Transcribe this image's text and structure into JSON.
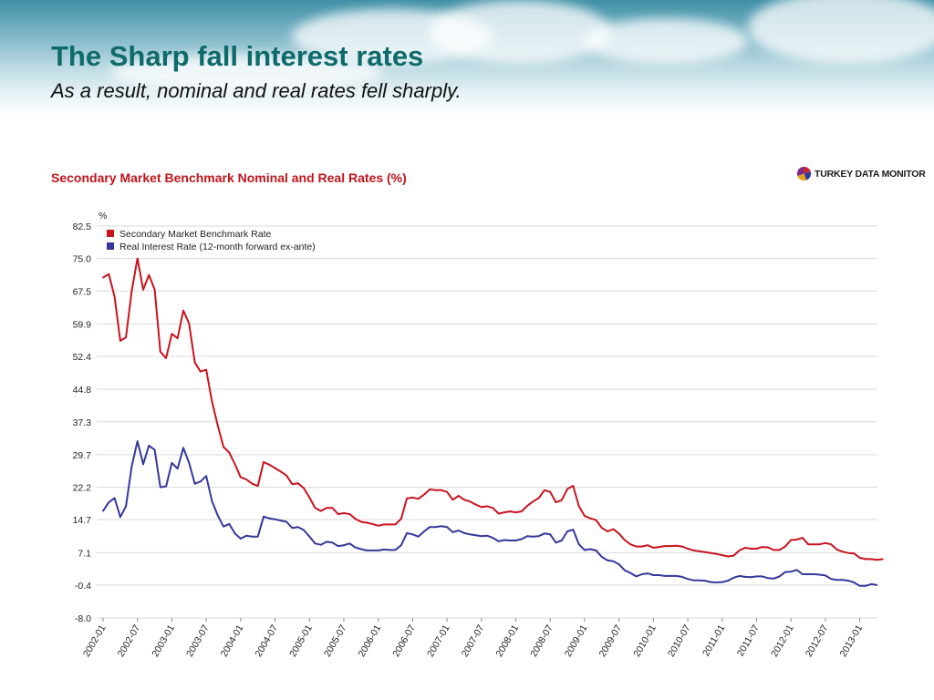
{
  "slide": {
    "title": "The Sharp fall interest rates",
    "subtitle": "As a result, nominal and real rates fell sharply."
  },
  "brand": {
    "logo_icon": "pie-logo-icon",
    "name": "TURKEY DATA MONITOR"
  },
  "colors": {
    "title": "#0f6b6b",
    "chart_title": "#c0151b",
    "nominal": "#c8141e",
    "real": "#34389a",
    "grid": "#d9d9d9"
  },
  "chart_data": {
    "type": "line",
    "title": "Secondary Market Benchmark Nominal and Real Rates (%)",
    "ylabel": "%",
    "xlabel": "",
    "ylim": [
      -8.0,
      82.5
    ],
    "yticks": [
      "82.5",
      "75.0",
      "67.5",
      "59.9",
      "52.4",
      "44.8",
      "37.3",
      "29.7",
      "22.2",
      "14.7",
      "7.1",
      "-0.4",
      "-8.0"
    ],
    "xticks": [
      "2002-01",
      "2002-07",
      "2003-01",
      "2003-07",
      "2004-01",
      "2004-07",
      "2005-01",
      "2005-07",
      "2006-01",
      "2006-07",
      "2007-01",
      "2007-07",
      "2008-01",
      "2008-07",
      "2009-01",
      "2009-07",
      "2010-01",
      "2010-07",
      "2011-01",
      "2011-07",
      "2012-01",
      "2012-07",
      "2013-01"
    ],
    "grid": true,
    "legend_position": "top-left",
    "x_start": "2002-01",
    "x_step": "1 month",
    "series": [
      {
        "name": "Secondary Market Benchmark Rate",
        "color": "#c8141e",
        "values": [
          70.6,
          71.4,
          66.2,
          56.0,
          56.8,
          67.5,
          75.0,
          67.8,
          71.2,
          67.8,
          53.5,
          52.0,
          57.6,
          56.6,
          63.0,
          60.0,
          51.0,
          48.9,
          49.3,
          42.0,
          36.5,
          31.5,
          30.2,
          27.5,
          24.5,
          24.0,
          23.0,
          22.5,
          28.0,
          27.4,
          26.6,
          25.8,
          24.9,
          22.9,
          23.1,
          22.0,
          19.8,
          17.4,
          16.7,
          17.4,
          17.4,
          16.0,
          16.2,
          16.0,
          14.9,
          14.2,
          14.0,
          13.7,
          13.3,
          13.6,
          13.6,
          13.6,
          14.9,
          19.6,
          19.8,
          19.5,
          20.5,
          21.7,
          21.5,
          21.5,
          21.1,
          19.3,
          20.2,
          19.3,
          18.9,
          18.2,
          17.6,
          17.8,
          17.4,
          16.1,
          16.4,
          16.6,
          16.4,
          16.6,
          17.9,
          18.9,
          19.7,
          21.5,
          21.1,
          18.7,
          19.2,
          21.8,
          22.5,
          17.8,
          15.6,
          15.0,
          14.6,
          12.8,
          12.0,
          12.5,
          11.5,
          10.0,
          9.0,
          8.5,
          8.5,
          8.8,
          8.2,
          8.4,
          8.6,
          8.6,
          8.7,
          8.5,
          8.0,
          7.6,
          7.4,
          7.2,
          7.0,
          6.8,
          6.5,
          6.2,
          6.4,
          7.6,
          8.2,
          8.0,
          8.0,
          8.4,
          8.3,
          7.7,
          7.7,
          8.5,
          10.0,
          10.1,
          10.5,
          9.0,
          9.0,
          9.0,
          9.3,
          9.0,
          7.8,
          7.3,
          7.0,
          6.9,
          5.9,
          5.6,
          5.6,
          5.4,
          5.6
        ]
      },
      {
        "name": "Real Interest Rate (12-month forward ex-ante)",
        "color": "#34389a",
        "values": [
          16.7,
          18.7,
          19.7,
          15.3,
          17.8,
          27.0,
          32.8,
          27.5,
          31.8,
          30.8,
          22.2,
          22.4,
          27.8,
          26.5,
          31.3,
          27.8,
          23.0,
          23.5,
          24.8,
          19.0,
          15.7,
          13.1,
          13.7,
          11.5,
          10.3,
          11.0,
          10.8,
          10.8,
          15.4,
          15.0,
          14.8,
          14.5,
          14.2,
          12.8,
          13.0,
          12.3,
          10.8,
          9.2,
          8.9,
          9.6,
          9.4,
          8.6,
          8.8,
          9.2,
          8.3,
          7.9,
          7.6,
          7.6,
          7.6,
          7.8,
          7.7,
          7.7,
          8.8,
          11.6,
          11.3,
          10.8,
          12.0,
          13.0,
          13.0,
          13.2,
          13.0,
          11.8,
          12.2,
          11.6,
          11.3,
          11.1,
          10.9,
          11.0,
          10.5,
          9.7,
          10.0,
          9.9,
          9.9,
          10.2,
          10.9,
          10.8,
          10.9,
          11.5,
          11.3,
          9.4,
          9.9,
          12.0,
          12.4,
          9.0,
          7.7,
          7.9,
          7.6,
          6.1,
          5.3,
          5.1,
          4.4,
          3.0,
          2.4,
          1.6,
          2.1,
          2.3,
          1.9,
          1.9,
          1.7,
          1.7,
          1.7,
          1.5,
          1.0,
          0.7,
          0.7,
          0.6,
          0.3,
          0.2,
          0.3,
          0.6,
          1.3,
          1.7,
          1.5,
          1.4,
          1.6,
          1.6,
          1.2,
          1.1,
          1.6,
          2.6,
          2.7,
          3.1,
          2.1,
          2.1,
          2.1,
          2.0,
          1.8,
          1.0,
          0.8,
          0.8,
          0.6,
          0.2,
          -0.6,
          -0.6,
          -0.2,
          -0.4
        ]
      }
    ]
  }
}
